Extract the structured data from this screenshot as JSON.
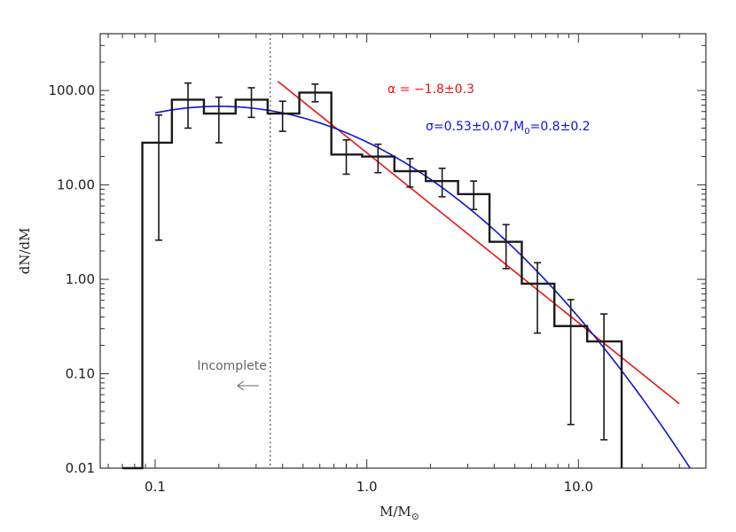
{
  "chart_data": {
    "type": "histogram",
    "xlabel": "M/M",
    "xlabel_subscript": "⊙",
    "ylabel": "dN/dM",
    "xscale": "log",
    "yscale": "log",
    "xlim": [
      0.055,
      40
    ],
    "ylim": [
      0.01,
      400
    ],
    "x_ticks": [
      0.1,
      1.0,
      10.0
    ],
    "x_tick_labels": [
      "0.1",
      "1.0",
      "10.0"
    ],
    "y_ticks": [
      0.01,
      0.1,
      1.0,
      10.0,
      100.0
    ],
    "y_tick_labels": [
      "0.01",
      "0.10",
      "1.00",
      "10.00",
      "100.00"
    ],
    "completeness_limit": 0.35,
    "incomplete_label": "Incomplete",
    "histogram": {
      "edges": [
        0.07,
        0.087,
        0.12,
        0.17,
        0.24,
        0.34,
        0.48,
        0.68,
        0.95,
        1.35,
        1.9,
        2.7,
        3.8,
        5.4,
        7.7,
        11.0,
        16.0
      ],
      "values": [
        0.01,
        28,
        80,
        57,
        80,
        57,
        95,
        21,
        20,
        14,
        11,
        8,
        2.5,
        0.9,
        0.32,
        0.22,
        0.01
      ],
      "errors": [
        {
          "x": 0.104,
          "low": 2.6,
          "high": 55
        },
        {
          "x": 0.143,
          "low": 40,
          "high": 120
        },
        {
          "x": 0.2,
          "low": 28,
          "high": 85
        },
        {
          "x": 0.285,
          "low": 52,
          "high": 107
        },
        {
          "x": 0.4,
          "low": 37,
          "high": 77
        },
        {
          "x": 0.57,
          "low": 76,
          "high": 117
        },
        {
          "x": 0.8,
          "low": 13,
          "high": 30
        },
        {
          "x": 1.13,
          "low": 13.5,
          "high": 27
        },
        {
          "x": 1.6,
          "low": 9.5,
          "high": 19
        },
        {
          "x": 2.27,
          "low": 7.5,
          "high": 15
        },
        {
          "x": 3.2,
          "low": 5.5,
          "high": 11
        },
        {
          "x": 4.55,
          "low": 1.3,
          "high": 3.8
        },
        {
          "x": 6.4,
          "low": 0.27,
          "high": 1.5
        },
        {
          "x": 9.2,
          "low": 0.029,
          "high": 0.61
        },
        {
          "x": 13.2,
          "low": 0.02,
          "high": 0.43
        }
      ]
    },
    "series": [
      {
        "name": "power law",
        "color": "#ee1111",
        "label": "α = −1.8±0.3",
        "alpha": -1.8,
        "x_start": 0.38,
        "x_end": 30,
        "value_at_start": 125
      },
      {
        "name": "lognormal",
        "color": "#1111dd",
        "label_main": "σ=0.53±0.07,M",
        "label_sub": "0",
        "label_tail": "=0.8±0.2",
        "sigma": 0.53,
        "m0": 0.8,
        "peak_mass": 0.2,
        "peak_value": 68,
        "x_start": 0.1,
        "x_end": 40
      }
    ]
  }
}
